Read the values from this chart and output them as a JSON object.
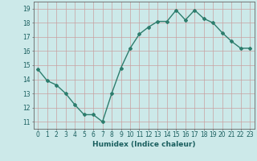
{
  "x": [
    0,
    1,
    2,
    3,
    4,
    5,
    6,
    7,
    8,
    9,
    10,
    11,
    12,
    13,
    14,
    15,
    16,
    17,
    18,
    19,
    20,
    21,
    22,
    23
  ],
  "y": [
    14.7,
    13.9,
    13.6,
    13.0,
    12.2,
    11.5,
    11.5,
    11.0,
    13.0,
    14.8,
    16.2,
    17.2,
    17.7,
    18.1,
    18.1,
    18.9,
    18.2,
    18.9,
    18.3,
    18.0,
    17.3,
    16.7,
    16.2,
    16.2
  ],
  "xlabel": "Humidex (Indice chaleur)",
  "ylim": [
    10.5,
    19.5
  ],
  "xlim": [
    -0.5,
    23.5
  ],
  "yticks": [
    11,
    12,
    13,
    14,
    15,
    16,
    17,
    18,
    19
  ],
  "xticks": [
    0,
    1,
    2,
    3,
    4,
    5,
    6,
    7,
    8,
    9,
    10,
    11,
    12,
    13,
    14,
    15,
    16,
    17,
    18,
    19,
    20,
    21,
    22,
    23
  ],
  "xtick_labels": [
    "0",
    "1",
    "2",
    "3",
    "4",
    "5",
    "6",
    "7",
    "8",
    "9",
    "10",
    "11",
    "12",
    "13",
    "14",
    "15",
    "16",
    "17",
    "18",
    "19",
    "20",
    "21",
    "22",
    "23"
  ],
  "line_color": "#2d7d6d",
  "marker": "D",
  "marker_size": 2.0,
  "bg_color": "#cce9e9",
  "grid_color": "#b8d8d8",
  "fig_bg_color": "#cce9e9",
  "line_width": 1.0,
  "tick_fontsize": 5.5,
  "xlabel_fontsize": 6.5
}
